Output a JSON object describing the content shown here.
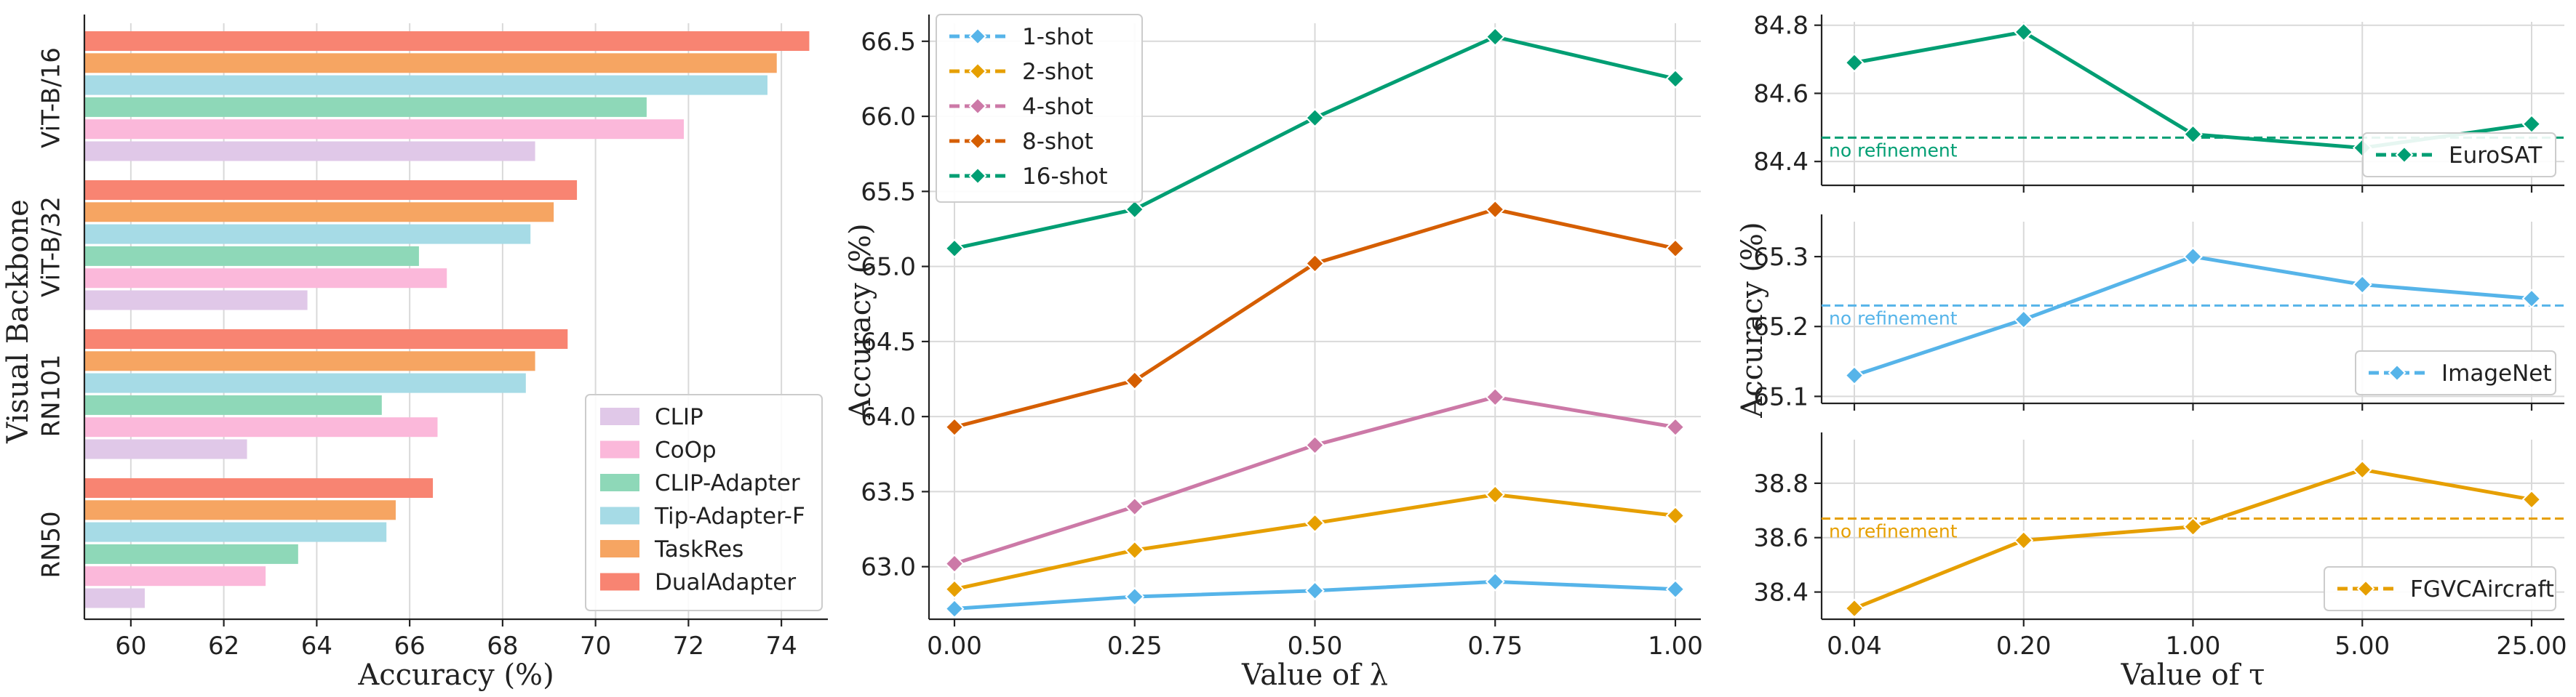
{
  "colors": {
    "CLIP": "#e0c8e8",
    "CoOp": "#fbb8da",
    "CLIP-Adapter": "#8ed8b8",
    "Tip-Adapter-F": "#a6dbe6",
    "TaskRes": "#f6a562",
    "DualAdapter": "#f88472",
    "1-shot": "#56b4e9",
    "2-shot": "#e69f00",
    "4-shot": "#cc79a7",
    "8-shot": "#d55e00",
    "16-shot": "#009e73",
    "EuroSAT": "#009e73",
    "ImageNet": "#56b4e9",
    "FGVCAircraft": "#e69f00"
  },
  "chart_data": [
    {
      "type": "bar",
      "orientation": "horizontal",
      "ylabel": "Visual Backbone",
      "xlabel": "Accuracy (%)",
      "xlim": [
        59,
        75
      ],
      "xticks": [
        "60",
        "62",
        "64",
        "66",
        "68",
        "70",
        "72",
        "74"
      ],
      "categories": [
        "ViT-B/16",
        "ViT-B/32",
        "RN101",
        "RN50"
      ],
      "series": [
        {
          "name": "CLIP",
          "values": [
            68.7,
            63.8,
            62.5,
            60.3
          ]
        },
        {
          "name": "CoOp",
          "values": [
            71.9,
            66.8,
            66.6,
            62.9
          ]
        },
        {
          "name": "CLIP-Adapter",
          "values": [
            71.1,
            66.2,
            65.4,
            63.6
          ]
        },
        {
          "name": "Tip-Adapter-F",
          "values": [
            73.7,
            68.6,
            68.5,
            65.5
          ]
        },
        {
          "name": "TaskRes",
          "values": [
            73.9,
            69.1,
            68.7,
            65.7
          ]
        },
        {
          "name": "DualAdapter",
          "values": [
            74.6,
            69.6,
            69.4,
            66.5
          ]
        }
      ],
      "legend": "lower-right",
      "grid": "x"
    },
    {
      "type": "line",
      "xlabel": "Value of λ",
      "ylabel": "Accuracy (%)",
      "x": [
        0.0,
        0.25,
        0.5,
        0.75,
        1.0
      ],
      "xticks": [
        "0.00",
        "0.25",
        "0.50",
        "0.75",
        "1.00"
      ],
      "ylim": [
        62.65,
        66.62
      ],
      "yticks": [
        "63.0",
        "63.5",
        "64.0",
        "64.5",
        "65.0",
        "65.5",
        "66.0",
        "66.5"
      ],
      "series": [
        {
          "name": "1-shot",
          "values": [
            62.72,
            62.8,
            62.84,
            62.9,
            62.85
          ]
        },
        {
          "name": "2-shot",
          "values": [
            62.85,
            63.11,
            63.29,
            63.48,
            63.34
          ]
        },
        {
          "name": "4-shot",
          "values": [
            63.02,
            63.4,
            63.81,
            64.13,
            63.93
          ]
        },
        {
          "name": "8-shot",
          "values": [
            63.93,
            64.24,
            65.02,
            65.38,
            65.12
          ]
        },
        {
          "name": "16-shot",
          "values": [
            65.12,
            65.38,
            65.99,
            66.53,
            66.25
          ]
        }
      ],
      "legend": "upper-left",
      "grid": true
    },
    {
      "type": "line",
      "xlabel": "Value of τ",
      "ylabel": "Accuracy (%)",
      "x": [
        0.04,
        0.2,
        1.0,
        5.0,
        25.0
      ],
      "xticks": [
        "0.04",
        "0.20",
        "1.00",
        "5.00",
        "25.00"
      ],
      "panels": [
        {
          "name": "EuroSAT",
          "values": [
            84.69,
            84.78,
            84.48,
            84.44,
            84.51
          ],
          "baseline": 84.47,
          "baseline_label": "no refinement",
          "ylim": [
            84.33,
            84.81
          ],
          "yticks": [
            "84.4",
            "84.6",
            "84.8"
          ]
        },
        {
          "name": "ImageNet",
          "values": [
            65.13,
            65.21,
            65.3,
            65.26,
            65.24
          ],
          "baseline": 65.23,
          "baseline_label": "no refinement",
          "ylim": [
            65.09,
            65.35
          ],
          "yticks": [
            "65.1",
            "65.2",
            "65.3"
          ]
        },
        {
          "name": "FGVCAircraft",
          "values": [
            38.34,
            38.59,
            38.64,
            38.85,
            38.74
          ],
          "baseline": 38.67,
          "baseline_label": "no refinement",
          "ylim": [
            38.3,
            38.96
          ],
          "yticks": [
            "38.4",
            "38.6",
            "38.8"
          ]
        }
      ],
      "legend": "lower-right",
      "grid": true
    }
  ]
}
